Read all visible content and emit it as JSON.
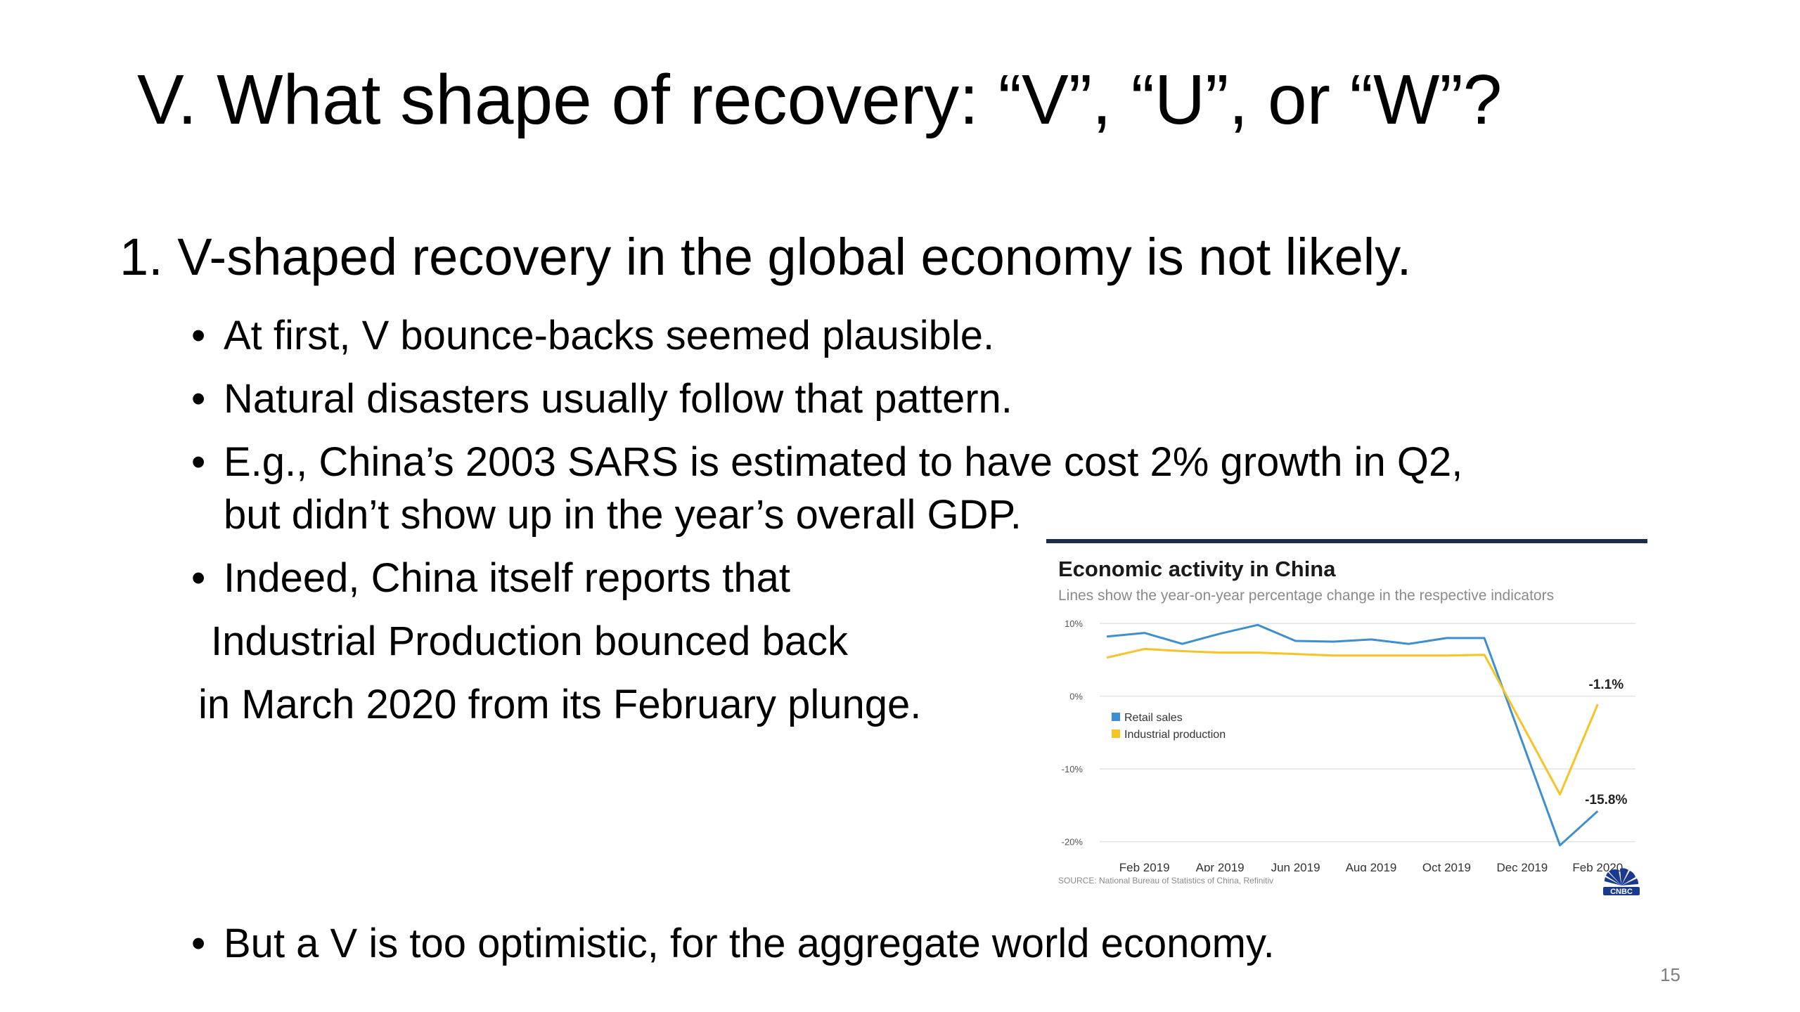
{
  "slide": {
    "title": "V.  What shape of recovery: “V”, “U”, or “W”?",
    "heading": "1. V-shaped recovery in the global economy is not likely.",
    "bullets": [
      "At first, V bounce-backs seemed plausible.",
      "Natural disasters usually follow that pattern.",
      "E.g., China’s 2003 SARS is estimated to have cost 2% growth in Q2,",
      "but didn’t show up in the year’s overall GDP.",
      "Indeed, China itself reports that",
      "Industrial Production bounced back",
      "in March 2020 from its February plunge.",
      "But a V is too optimistic, for the aggregate world economy."
    ],
    "page_number": "15"
  },
  "chart_data": {
    "type": "line",
    "title": "Economic activity in China",
    "subtitle": "Lines show the year-on-year percentage change in the respective indicators",
    "source": "SOURCE: National Bureau of Statistics of China, Refinitiv",
    "logo": "CNBC",
    "x": [
      "Jan 2019",
      "Feb 2019",
      "Mar 2019",
      "Apr 2019",
      "May 2019",
      "Jun 2019",
      "Jul 2019",
      "Aug 2019",
      "Sep 2019",
      "Oct 2019",
      "Nov 2019",
      "Dec 2019",
      "Jan 2020",
      "Feb 2020",
      "Mar 2020"
    ],
    "x_tick_labels": [
      "Feb 2019",
      "Apr 2019",
      "Jun 2019",
      "Aug 2019",
      "Oct 2019",
      "Dec 2019",
      "Feb 2020"
    ],
    "y_ticks": [
      "10%",
      "0%",
      "-10%",
      "-20%"
    ],
    "ylim": [
      -21,
      10.5
    ],
    "grid": true,
    "legend_position": "left-middle",
    "series": [
      {
        "name": "Retail sales",
        "color": "#3d8fd1",
        "values": [
          8.2,
          8.7,
          7.2,
          8.6,
          9.8,
          7.6,
          7.5,
          7.8,
          7.2,
          8.0,
          8.0,
          null,
          -20.5,
          -15.8,
          null
        ]
      },
      {
        "name": "Industrial production",
        "color": "#f7c325",
        "values": [
          5.3,
          6.5,
          6.2,
          6.0,
          6.0,
          5.8,
          5.6,
          5.6,
          5.6,
          5.6,
          5.7,
          null,
          -13.5,
          -1.1,
          null
        ]
      }
    ],
    "data_labels": [
      {
        "series": "Industrial production",
        "text": "-1.1%"
      },
      {
        "series": "Retail sales",
        "text": "-15.8%"
      }
    ]
  }
}
